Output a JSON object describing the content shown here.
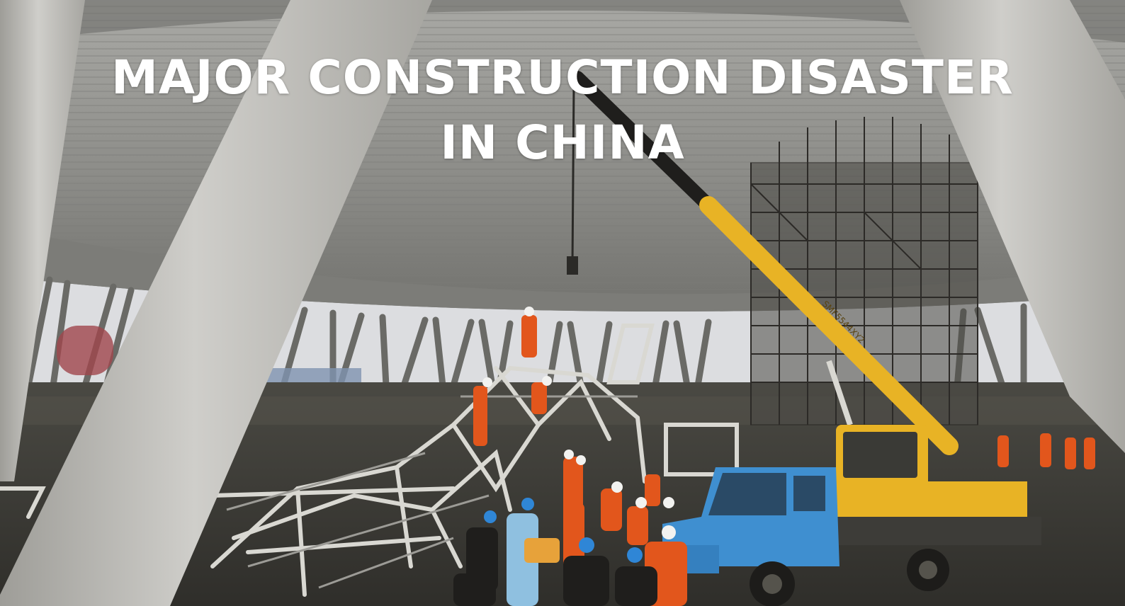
{
  "headline": {
    "line1": "MAJOR CONSTRUCTION DISASTER",
    "line2": "IN CHINA"
  },
  "photo": {
    "crane_text": "SMF5544XY2",
    "colors": {
      "dome": "#8e8e8a",
      "pillar": "#bdbcb7",
      "sky": "#dcdde0",
      "crane_yellow": "#e8b325",
      "truck_blue": "#3f8fd0",
      "worker_orange": "#e2561c",
      "ground": "#3e3d38"
    }
  }
}
